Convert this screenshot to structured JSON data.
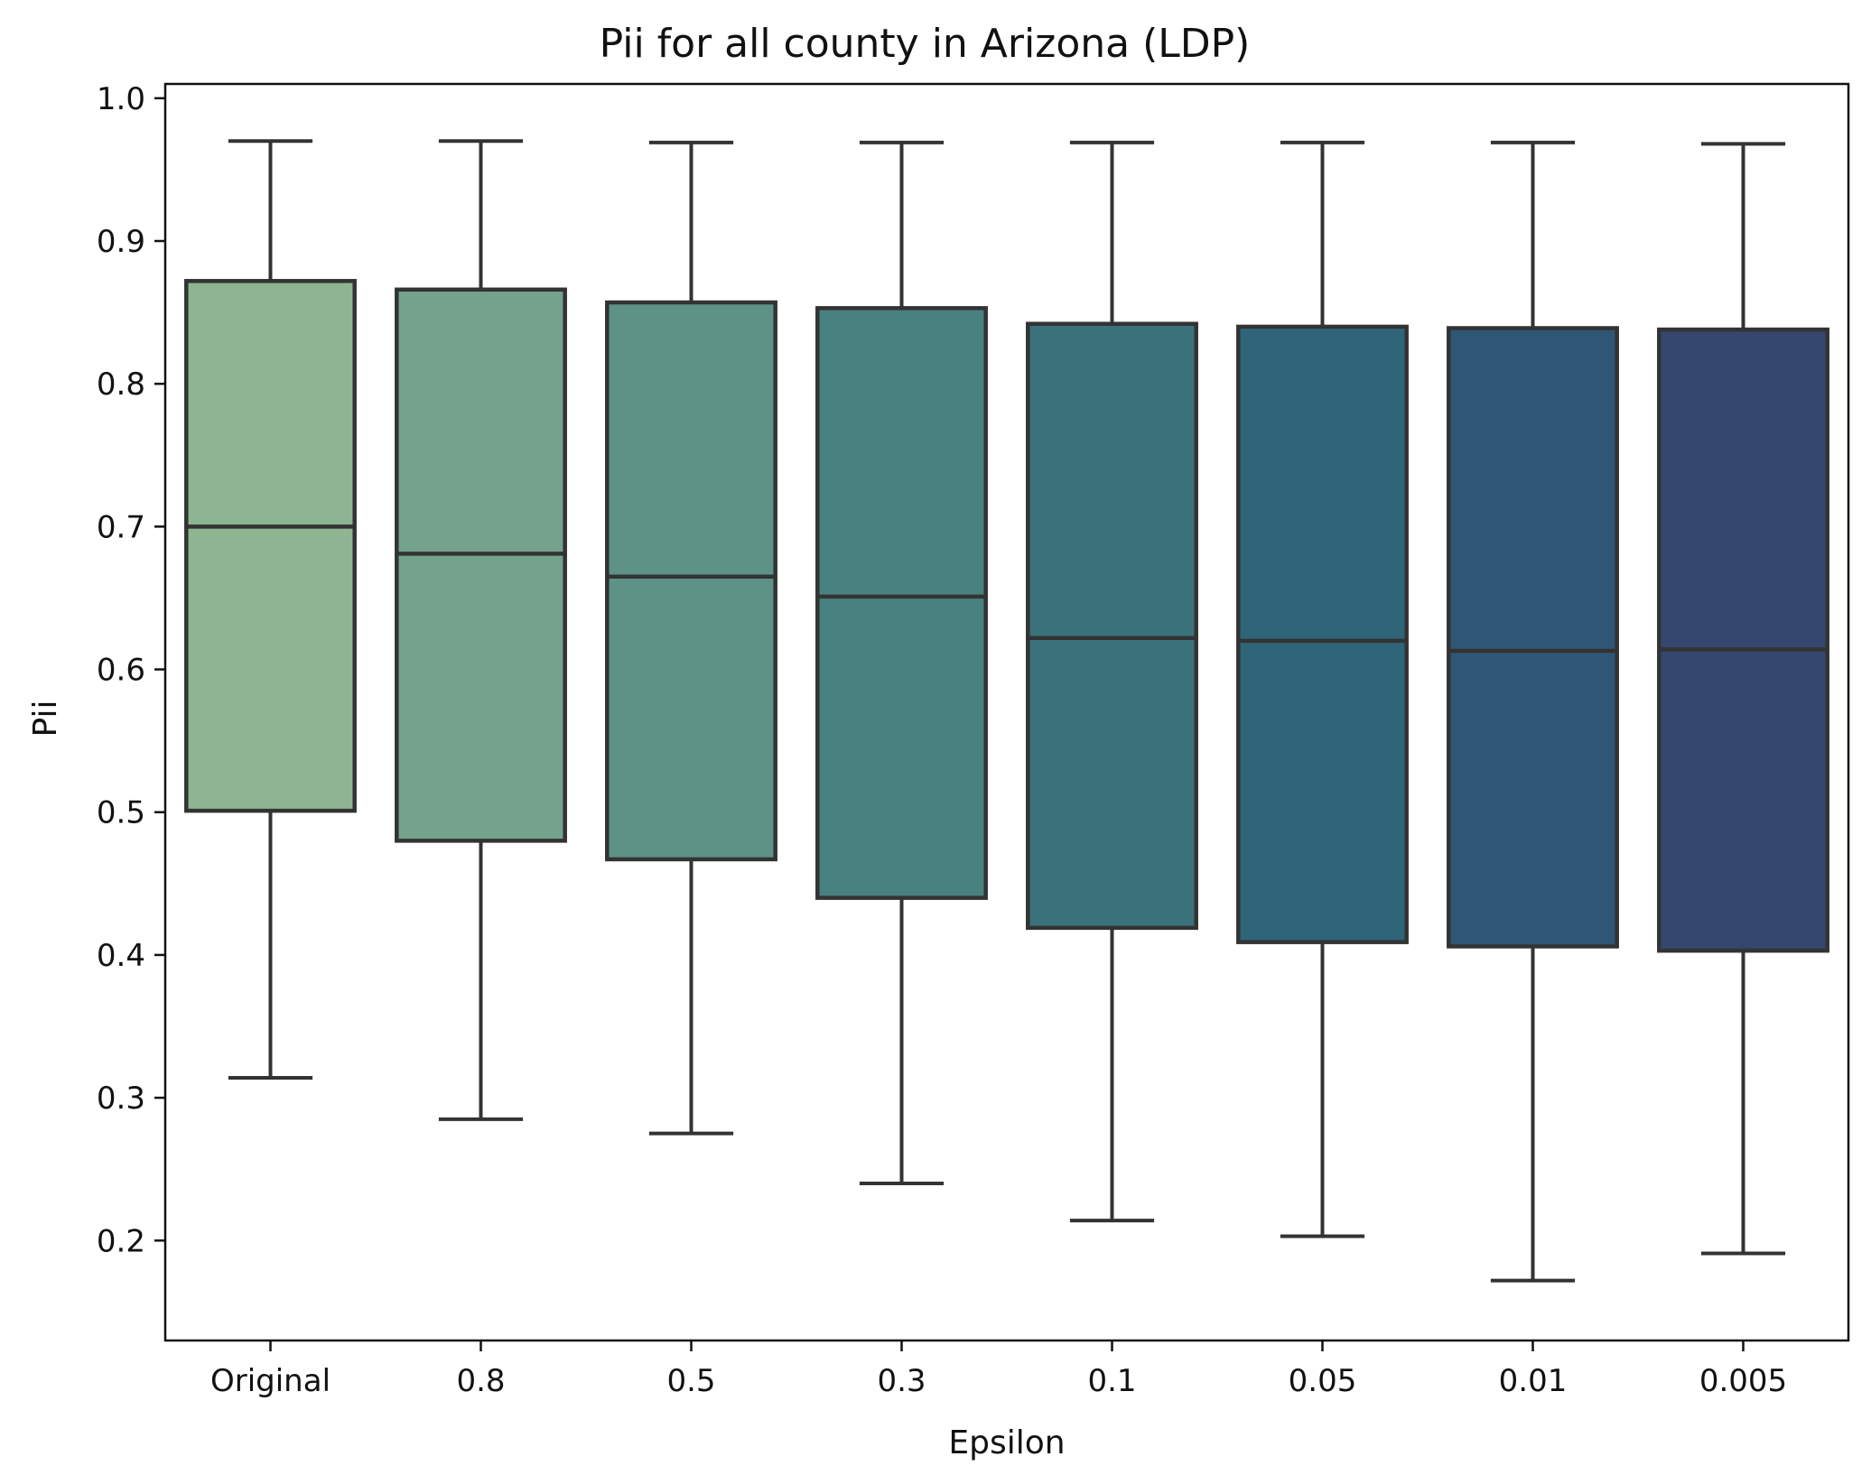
{
  "chart_data": {
    "type": "box",
    "title": "Pii for all county in Arizona (LDP)",
    "xlabel": "Epsilon",
    "ylabel": "Pii",
    "ylim": [
      0.13,
      1.01
    ],
    "yticks": [
      "0.2",
      "0.3",
      "0.4",
      "0.5",
      "0.6",
      "0.7",
      "0.8",
      "0.9",
      "1.0"
    ],
    "categories": [
      "Original",
      "0.8",
      "0.5",
      "0.3",
      "0.1",
      "0.05",
      "0.01",
      "0.005"
    ],
    "boxes": [
      {
        "category": "Original",
        "whisker_low": 0.314,
        "q1": 0.501,
        "median": 0.7,
        "q3": 0.872,
        "whisker_high": 0.97
      },
      {
        "category": "0.8",
        "whisker_low": 0.285,
        "q1": 0.48,
        "median": 0.681,
        "q3": 0.866,
        "whisker_high": 0.97
      },
      {
        "category": "0.5",
        "whisker_low": 0.275,
        "q1": 0.467,
        "median": 0.665,
        "q3": 0.857,
        "whisker_high": 0.969
      },
      {
        "category": "0.3",
        "whisker_low": 0.24,
        "q1": 0.44,
        "median": 0.651,
        "q3": 0.853,
        "whisker_high": 0.969
      },
      {
        "category": "0.1",
        "whisker_low": 0.214,
        "q1": 0.419,
        "median": 0.622,
        "q3": 0.842,
        "whisker_high": 0.969
      },
      {
        "category": "0.05",
        "whisker_low": 0.203,
        "q1": 0.409,
        "median": 0.62,
        "q3": 0.84,
        "whisker_high": 0.969
      },
      {
        "category": "0.01",
        "whisker_low": 0.172,
        "q1": 0.406,
        "median": 0.613,
        "q3": 0.839,
        "whisker_high": 0.969
      },
      {
        "category": "0.005",
        "whisker_low": 0.191,
        "q1": 0.403,
        "median": 0.614,
        "q3": 0.838,
        "whisker_high": 0.968
      }
    ],
    "colors": [
      "#8db592",
      "#74a28c",
      "#5e9287",
      "#498181",
      "#3a727c",
      "#2f6479",
      "#305676",
      "#35476e"
    ],
    "line_color": "#333333",
    "grid": false,
    "legend": "none"
  }
}
